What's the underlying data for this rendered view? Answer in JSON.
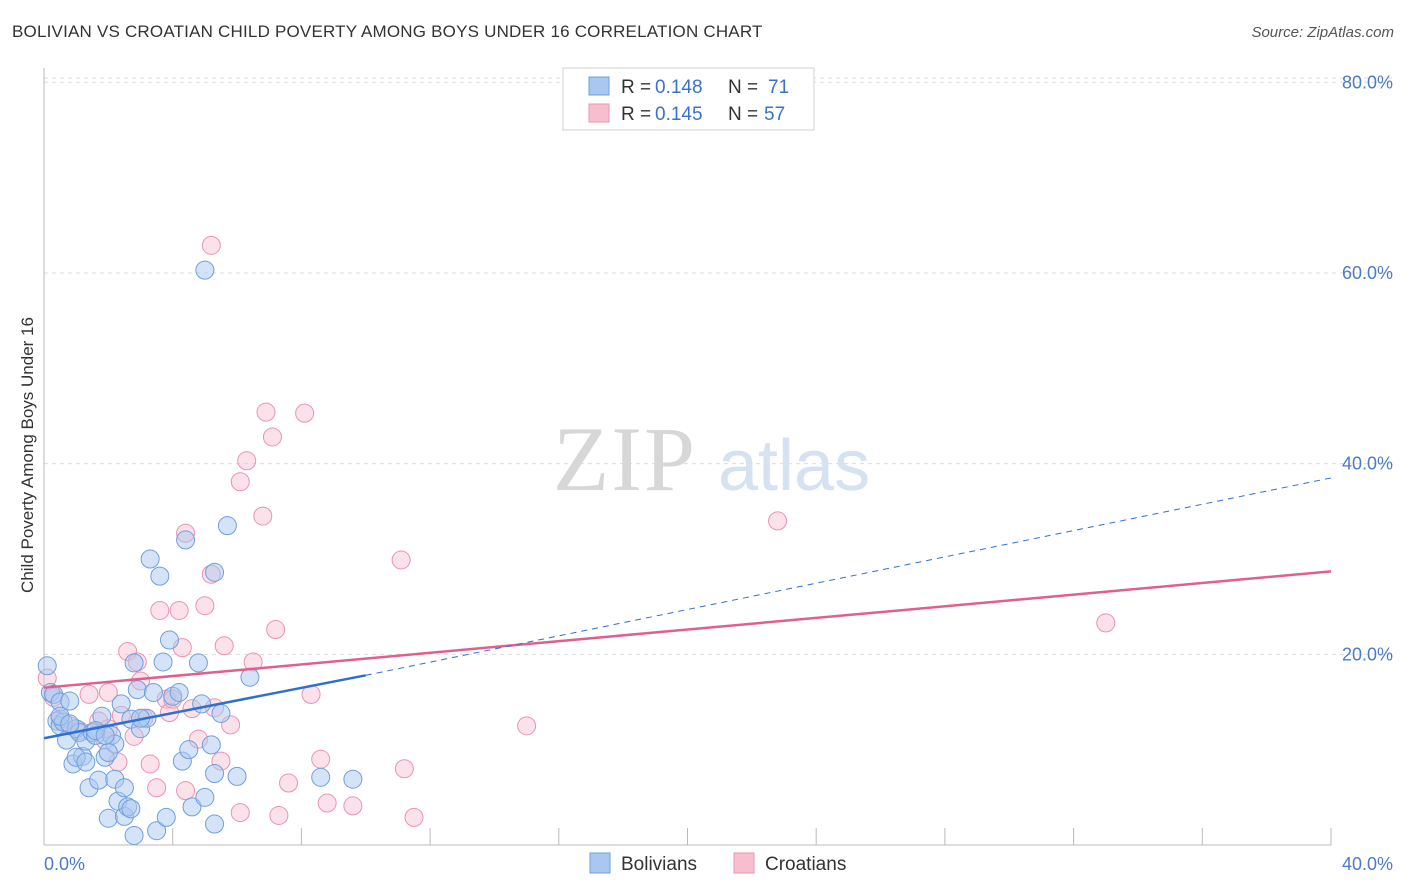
{
  "title": "BOLIVIAN VS CROATIAN CHILD POVERTY AMONG BOYS UNDER 16 CORRELATION CHART",
  "source": "Source: ZipAtlas.com",
  "watermark": {
    "zip": "ZIP",
    "atlas": "atlas"
  },
  "legend": {
    "rows": [
      {
        "r_label": "R =",
        "r_value": "0.148",
        "n_label": "N =",
        "n_value": "71"
      },
      {
        "r_label": "R =",
        "r_value": "0.145",
        "n_label": "N =",
        "n_value": "57"
      }
    ]
  },
  "bottom_legend": [
    "Bolivians",
    "Croatians"
  ],
  "colors": {
    "bolivians_fill": "#a9c8ef",
    "bolivians_stroke": "#6f9fde",
    "bolivians_line": "#2f6fcd",
    "croatians_fill": "#f6bfd0",
    "croatians_stroke": "#ec93ae",
    "croatians_line": "#e0608b",
    "tick_text": "#4a7bc8"
  },
  "chart_data": {
    "type": "scatter",
    "title": "BOLIVIAN VS CROATIAN CHILD POVERTY AMONG BOYS UNDER 16 CORRELATION CHART",
    "xlabel": "",
    "ylabel": "Child Poverty Among Boys Under 16",
    "xlim": [
      0,
      40
    ],
    "ylim": [
      0,
      80
    ],
    "x_tick_labels": [
      "0.0%",
      "40.0%"
    ],
    "y_tick_labels": [
      "20.0%",
      "40.0%",
      "60.0%",
      "80.0%"
    ],
    "y_ticks": [
      20,
      40,
      60,
      80
    ],
    "grid": true,
    "legend_position": "top-center",
    "series": [
      {
        "name": "Bolivians",
        "stats": {
          "R": 0.148,
          "N": 71
        },
        "trend": {
          "x": [
            0,
            10
          ],
          "y": [
            11.2,
            17.8
          ]
        },
        "trend_extension": {
          "x": [
            10,
            40
          ],
          "y": [
            17.8,
            38.5
          ]
        },
        "points": [
          [
            0.1,
            18.8
          ],
          [
            0.2,
            16.0
          ],
          [
            0.3,
            15.8
          ],
          [
            0.4,
            13.0
          ],
          [
            0.5,
            15.0
          ],
          [
            0.5,
            12.5
          ],
          [
            0.6,
            12.9
          ],
          [
            0.7,
            11.0
          ],
          [
            0.8,
            15.1
          ],
          [
            0.9,
            8.5
          ],
          [
            1.0,
            12.2
          ],
          [
            1.1,
            11.8
          ],
          [
            1.2,
            9.3
          ],
          [
            1.3,
            10.9
          ],
          [
            1.4,
            6.0
          ],
          [
            1.5,
            11.8
          ],
          [
            1.6,
            11.5
          ],
          [
            1.7,
            6.8
          ],
          [
            1.8,
            13.5
          ],
          [
            1.9,
            9.2
          ],
          [
            2.0,
            2.8
          ],
          [
            2.1,
            11.5
          ],
          [
            2.2,
            10.6
          ],
          [
            2.2,
            6.9
          ],
          [
            2.3,
            4.6
          ],
          [
            2.4,
            14.8
          ],
          [
            2.5,
            6.0
          ],
          [
            2.5,
            3.0
          ],
          [
            2.6,
            4.0
          ],
          [
            2.7,
            13.2
          ],
          [
            2.8,
            1.0
          ],
          [
            2.8,
            19.1
          ],
          [
            2.9,
            16.3
          ],
          [
            3.0,
            12.2
          ],
          [
            3.2,
            13.3
          ],
          [
            3.3,
            30.0
          ],
          [
            3.4,
            16.0
          ],
          [
            3.5,
            1.5
          ],
          [
            3.6,
            28.2
          ],
          [
            3.7,
            19.2
          ],
          [
            3.8,
            2.9
          ],
          [
            3.9,
            21.5
          ],
          [
            4.0,
            15.6
          ],
          [
            4.3,
            8.8
          ],
          [
            4.4,
            32.0
          ],
          [
            4.5,
            10.0
          ],
          [
            4.6,
            4.0
          ],
          [
            4.8,
            19.1
          ],
          [
            4.9,
            14.8
          ],
          [
            5.0,
            5.0
          ],
          [
            5.3,
            7.5
          ],
          [
            5.5,
            13.8
          ],
          [
            5.0,
            60.3
          ],
          [
            5.2,
            10.5
          ],
          [
            5.3,
            2.2
          ],
          [
            5.3,
            28.6
          ],
          [
            5.7,
            33.5
          ],
          [
            6.0,
            7.2
          ],
          [
            6.4,
            17.6
          ],
          [
            8.6,
            7.1
          ],
          [
            9.6,
            6.9
          ],
          [
            1.0,
            9.2
          ],
          [
            1.6,
            12.0
          ],
          [
            0.5,
            13.5
          ],
          [
            2.0,
            9.7
          ],
          [
            0.8,
            12.7
          ],
          [
            1.3,
            8.7
          ],
          [
            3.0,
            13.3
          ],
          [
            1.9,
            11.5
          ],
          [
            4.2,
            16.0
          ],
          [
            2.7,
            3.8
          ]
        ]
      },
      {
        "name": "Croatians",
        "stats": {
          "R": 0.145,
          "N": 57
        },
        "trend": {
          "x": [
            0,
            40
          ],
          "y": [
            16.5,
            28.7
          ]
        },
        "points": [
          [
            0.1,
            17.5
          ],
          [
            0.3,
            15.5
          ],
          [
            0.5,
            13.2
          ],
          [
            0.8,
            12.5
          ],
          [
            1.1,
            12.0
          ],
          [
            1.4,
            15.8
          ],
          [
            1.7,
            13.0
          ],
          [
            1.9,
            11.0
          ],
          [
            2.0,
            12.2
          ],
          [
            2.3,
            8.7
          ],
          [
            2.4,
            13.6
          ],
          [
            2.6,
            20.3
          ],
          [
            2.8,
            11.4
          ],
          [
            2.9,
            19.2
          ],
          [
            3.0,
            17.2
          ],
          [
            3.1,
            13.3
          ],
          [
            3.3,
            8.5
          ],
          [
            3.5,
            6.0
          ],
          [
            3.6,
            24.6
          ],
          [
            3.8,
            15.3
          ],
          [
            3.9,
            13.9
          ],
          [
            4.0,
            15.3
          ],
          [
            4.2,
            24.6
          ],
          [
            4.3,
            20.7
          ],
          [
            4.4,
            5.7
          ],
          [
            4.4,
            32.7
          ],
          [
            4.6,
            14.3
          ],
          [
            4.8,
            11.1
          ],
          [
            5.0,
            25.1
          ],
          [
            5.2,
            28.4
          ],
          [
            5.2,
            62.9
          ],
          [
            5.3,
            14.4
          ],
          [
            5.5,
            8.8
          ],
          [
            5.6,
            20.9
          ],
          [
            5.8,
            12.6
          ],
          [
            6.1,
            3.4
          ],
          [
            6.3,
            40.3
          ],
          [
            6.5,
            19.2
          ],
          [
            6.9,
            45.4
          ],
          [
            6.8,
            34.5
          ],
          [
            7.1,
            42.8
          ],
          [
            7.2,
            22.6
          ],
          [
            7.3,
            3.1
          ],
          [
            7.6,
            6.5
          ],
          [
            8.1,
            45.3
          ],
          [
            8.3,
            15.8
          ],
          [
            8.6,
            9.0
          ],
          [
            8.8,
            4.4
          ],
          [
            9.6,
            4.1
          ],
          [
            11.1,
            29.9
          ],
          [
            11.2,
            8.0
          ],
          [
            11.5,
            2.9
          ],
          [
            15.0,
            12.5
          ],
          [
            22.8,
            34.0
          ],
          [
            33.0,
            23.3
          ],
          [
            6.1,
            38.1
          ],
          [
            2.0,
            16.0
          ]
        ]
      }
    ]
  }
}
